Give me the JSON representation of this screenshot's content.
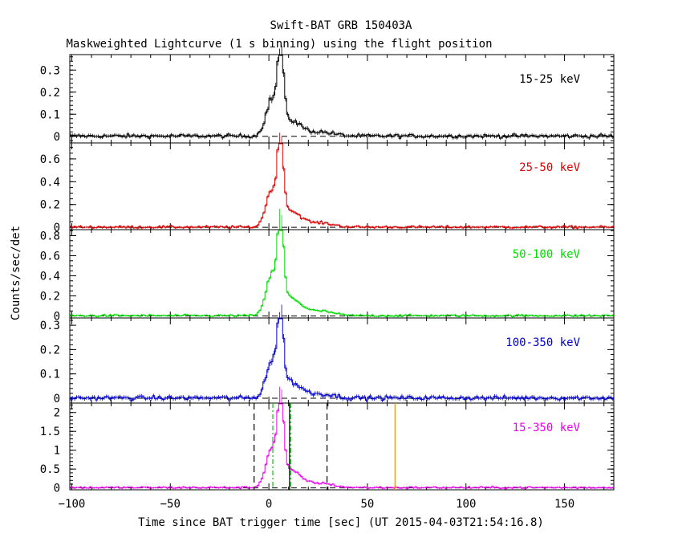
{
  "chart_data": {
    "type": "line",
    "title": "Swift-BAT GRB 150403A",
    "subtitle": "Maskweighted Lightcurve (1 s binning) using the flight position",
    "xlabel": "Time since BAT trigger time [sec] (UT 2015-04-03T21:54:16.8)",
    "ylabel": "Counts/sec/det",
    "xlim": [
      -101,
      175
    ],
    "xticks": [
      -100,
      -50,
      0,
      50,
      100,
      150
    ],
    "profile": {
      "background_level": 0.012,
      "rise_start": -5,
      "components": [
        {
          "center": 1.5,
          "width": 3.0,
          "weight": 0.42
        },
        {
          "center": 6.0,
          "width": 1.4,
          "weight": 1.0
        },
        {
          "center": 10.0,
          "width": 6.0,
          "weight": 0.22
        },
        {
          "center": 27.0,
          "width": 6.0,
          "weight": 0.05
        }
      ]
    },
    "panels": [
      {
        "band": "15-25 keV",
        "color": "#000000",
        "ylim": [
          -0.03,
          0.37
        ],
        "yticks": [
          0,
          0.1,
          0.2,
          0.3
        ],
        "ytick_labels": [
          "0",
          "0.1",
          "0.2",
          "0.3"
        ],
        "peak": 0.34,
        "noise": 0.008
      },
      {
        "band": "25-50 keV",
        "color": "#dd0000",
        "ylim": [
          -0.02,
          0.74
        ],
        "yticks": [
          0,
          0.2,
          0.4,
          0.6
        ],
        "ytick_labels": [
          "0",
          "0.2",
          "0.4",
          "0.6"
        ],
        "peak": 0.67,
        "noise": 0.01
      },
      {
        "band": "50-100 keV",
        "color": "#00dd00",
        "ylim": [
          -0.02,
          0.86
        ],
        "yticks": [
          0,
          0.2,
          0.4,
          0.6,
          0.8
        ],
        "ytick_labels": [
          "0",
          "0.2",
          "0.4",
          "0.6",
          "0.8"
        ],
        "peak": 0.84,
        "noise": 0.01
      },
      {
        "band": "100-350 keV",
        "color": "#0000cc",
        "ylim": [
          -0.02,
          0.33
        ],
        "yticks": [
          0,
          0.1,
          0.2,
          0.3
        ],
        "ytick_labels": [
          "0",
          "0.1",
          "0.2",
          "0.3"
        ],
        "peak": 0.31,
        "noise": 0.008
      },
      {
        "band": "15-350 keV",
        "color": "#ee00ee",
        "ylim": [
          -0.05,
          2.25
        ],
        "yticks": [
          0,
          0.5,
          1,
          1.5,
          2
        ],
        "ytick_labels": [
          "0",
          "0.5",
          "1",
          "1.5",
          "2"
        ],
        "peak": 2.15,
        "noise": 0.025
      }
    ],
    "markers": [
      {
        "kind": "t100-start",
        "x": -7.5,
        "color": "#000000",
        "style": "dashed"
      },
      {
        "kind": "t90-start",
        "x": 2.0,
        "color": "#00cc00",
        "style": "dashdot"
      },
      {
        "kind": "t50-end",
        "x": 10.5,
        "color": "#000000",
        "style": "solid"
      },
      {
        "kind": "t90-end",
        "x": 11.0,
        "color": "#00cc00",
        "style": "dashdot"
      },
      {
        "kind": "t100-end",
        "x": 29.5,
        "color": "#000000",
        "style": "dashed"
      },
      {
        "kind": "slew",
        "x": 64.0,
        "color": "#e69500",
        "style": "solid"
      }
    ]
  }
}
